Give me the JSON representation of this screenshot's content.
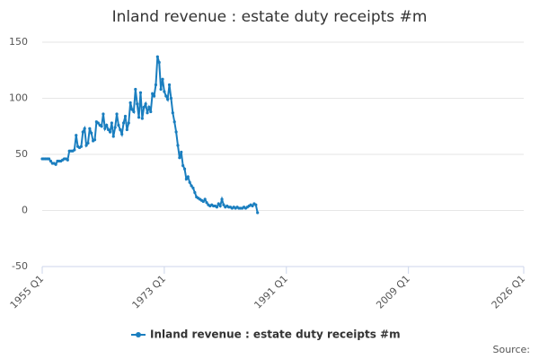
{
  "chart_data": {
    "type": "line",
    "title": "Inland revenue : estate duty receipts #m",
    "source": "Source:",
    "x": [
      1955,
      1955.25,
      1955.5,
      1955.75,
      1956,
      1956.25,
      1956.5,
      1956.75,
      1957,
      1957.25,
      1957.5,
      1957.75,
      1958,
      1958.25,
      1958.5,
      1958.75,
      1959,
      1959.25,
      1959.5,
      1959.75,
      1960,
      1960.25,
      1960.5,
      1960.75,
      1961,
      1961.25,
      1961.5,
      1961.75,
      1962,
      1962.25,
      1962.5,
      1962.75,
      1963,
      1963.25,
      1963.5,
      1963.75,
      1964,
      1964.25,
      1964.5,
      1964.75,
      1965,
      1965.25,
      1965.5,
      1965.75,
      1966,
      1966.25,
      1966.5,
      1966.75,
      1967,
      1967.25,
      1967.5,
      1967.75,
      1968,
      1968.25,
      1968.5,
      1968.75,
      1969,
      1969.25,
      1969.5,
      1969.75,
      1970,
      1970.25,
      1970.5,
      1970.75,
      1971,
      1971.25,
      1971.5,
      1971.75,
      1972,
      1972.25,
      1972.5,
      1972.75,
      1973,
      1973.25,
      1973.5,
      1973.75,
      1974,
      1974.25,
      1974.5,
      1974.75,
      1975,
      1975.25,
      1975.5,
      1975.75,
      1976,
      1976.25,
      1976.5,
      1976.75,
      1977,
      1977.25,
      1977.5,
      1977.75,
      1978,
      1978.25,
      1978.5,
      1978.75,
      1979,
      1979.25,
      1979.5,
      1979.75,
      1980,
      1980.25,
      1980.5,
      1980.75,
      1981,
      1981.25,
      1981.5,
      1981.75,
      1982,
      1982.25,
      1982.5,
      1982.75,
      1983,
      1983.25,
      1983.5,
      1983.75,
      1984,
      1984.25,
      1984.5,
      1984.75,
      1985,
      1985.25,
      1985.5,
      1985.75,
      1986,
      1986.25,
      1986.5,
      1986.75
    ],
    "series": [
      {
        "name": "Inland revenue : estate duty receipts #m",
        "color": "#1a7ebf",
        "values": [
          46,
          46,
          46,
          46,
          46,
          44,
          42,
          42,
          41,
          44,
          44,
          44,
          45,
          46,
          46,
          45,
          53,
          53,
          53,
          54,
          67,
          57,
          56,
          57,
          70,
          73,
          58,
          60,
          73,
          69,
          62,
          63,
          79,
          78,
          76,
          75,
          86,
          73,
          76,
          72,
          70,
          78,
          66,
          74,
          86,
          76,
          72,
          68,
          78,
          84,
          72,
          78,
          96,
          90,
          88,
          108,
          95,
          83,
          105,
          82,
          92,
          95,
          87,
          92,
          88,
          104,
          102,
          112,
          137,
          132,
          108,
          117,
          106,
          102,
          99,
          112,
          100,
          87,
          79,
          70,
          58,
          47,
          52,
          40,
          37,
          28,
          30,
          25,
          22,
          20,
          16,
          12,
          11,
          10,
          9,
          8,
          10,
          7,
          5,
          4,
          5,
          4,
          4,
          3,
          6,
          4,
          10,
          5,
          3,
          4,
          3,
          3,
          2,
          3,
          2,
          3,
          2,
          2,
          2,
          3,
          2,
          3,
          4,
          5,
          4,
          6,
          5,
          -2
        ]
      }
    ],
    "xlim": [
      1955,
      2026
    ],
    "xticks": [
      {
        "value": 1955,
        "label": "1955 Q1"
      },
      {
        "value": 1973,
        "label": "1973 Q1"
      },
      {
        "value": 1991,
        "label": "1991 Q1"
      },
      {
        "value": 2009,
        "label": "2009 Q1"
      },
      {
        "value": 2026,
        "label": "2026 Q1"
      }
    ],
    "ylim": [
      -50,
      150
    ],
    "yticks": [
      -50,
      0,
      50,
      100,
      150
    ],
    "grid": true,
    "legend": "bottom"
  }
}
